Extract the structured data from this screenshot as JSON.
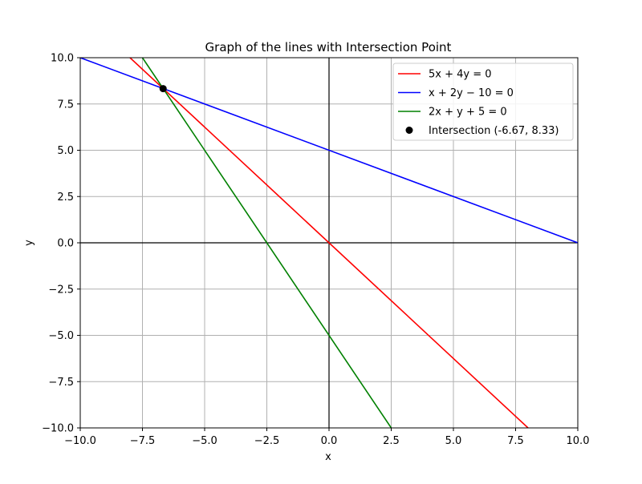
{
  "chart_data": {
    "type": "line",
    "title": "Graph of the lines with Intersection Point",
    "xlabel": "x",
    "ylabel": "y",
    "xlim": [
      -10,
      10
    ],
    "ylim": [
      -10,
      10
    ],
    "grid": true,
    "legend_position": "top-right",
    "x_ticks": [
      -10.0,
      -7.5,
      -5.0,
      -2.5,
      0.0,
      2.5,
      5.0,
      7.5,
      10.0
    ],
    "x_tick_labels": [
      "−10.0",
      "−7.5",
      "−5.0",
      "−2.5",
      "0.0",
      "2.5",
      "5.0",
      "7.5",
      "10.0"
    ],
    "y_ticks": [
      -10.0,
      -7.5,
      -5.0,
      -2.5,
      0.0,
      2.5,
      5.0,
      7.5,
      10.0
    ],
    "y_tick_labels": [
      "−10.0",
      "−7.5",
      "−5.0",
      "−2.5",
      "0.0",
      "2.5",
      "5.0",
      "7.5",
      "10.0"
    ],
    "series": [
      {
        "name": "5x + 4y = 0",
        "color": "#ff0000",
        "x": [
          -8.0,
          8.0
        ],
        "y": [
          10.0,
          -10.0
        ]
      },
      {
        "name": "x + 2y − 10 = 0",
        "color": "#0000ff",
        "x": [
          -10.0,
          10.0
        ],
        "y": [
          10.0,
          0.0
        ]
      },
      {
        "name": "2x + y + 5 = 0",
        "color": "#008000",
        "x": [
          -7.5,
          2.5
        ],
        "y": [
          10.0,
          -10.0
        ]
      }
    ],
    "points": [
      {
        "name": "Intersection (-6.67, 8.33)",
        "color": "#000000",
        "x": -6.67,
        "y": 8.33
      }
    ]
  }
}
